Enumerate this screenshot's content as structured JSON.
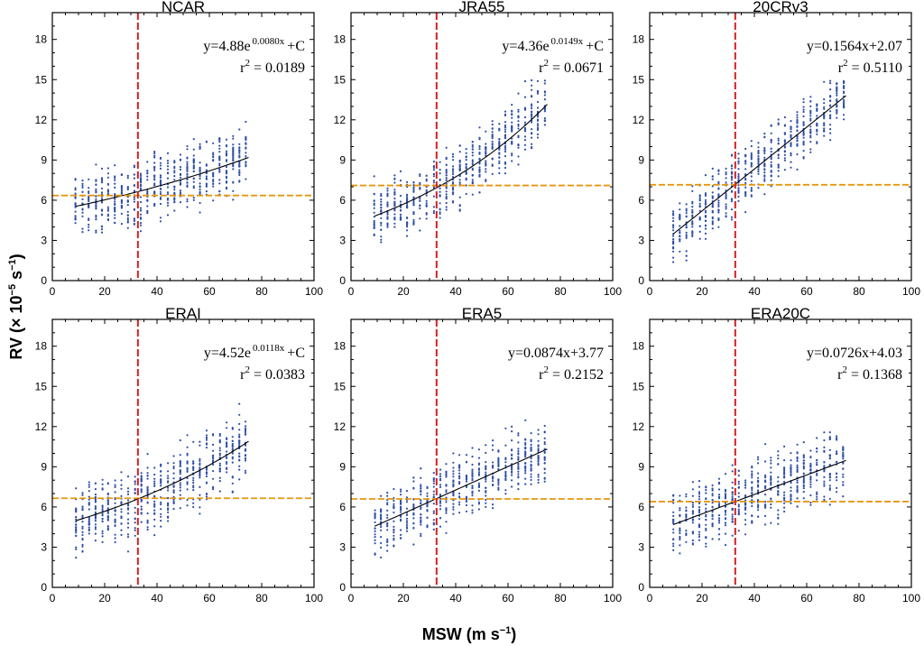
{
  "chart_data": {
    "type": "scatter",
    "xlabel": {
      "main": "MSW (m s",
      "exp": "−1",
      "close": ")"
    },
    "ylabel": {
      "main": "RV (× 10",
      "exp1": "−5",
      "mid": " s",
      "exp2": "−1",
      "close": ")"
    },
    "xlim": [
      0,
      100
    ],
    "ylim": [
      0,
      20
    ],
    "xticks": [
      0,
      20,
      40,
      60,
      80,
      100
    ],
    "yticks": [
      0,
      3,
      6,
      9,
      12,
      15,
      18
    ],
    "vline_x": 32.7,
    "colors": {
      "points": "#2f4fa8",
      "fit": "#000000",
      "vline": "#d42020",
      "hline": "#e8960c",
      "frame": "#000000"
    },
    "panels": [
      {
        "title": "NCAR",
        "fit_type": "exp",
        "a": 4.88,
        "b": 0.008,
        "c": 0.3,
        "eq": {
          "prefix": "y=4.88e",
          "exp": "0.0080x",
          "suffix": "+C"
        },
        "r2": {
          "base": "r",
          "sup": "2",
          "value": " = 0.0189"
        },
        "hline": 6.35,
        "spread": 1.9,
        "ymax_clip": 14.5
      },
      {
        "title": "JRA55",
        "fit_type": "exp",
        "a": 4.36,
        "b": 0.0149,
        "c": -0.17,
        "eq": {
          "prefix": "y=4.36e",
          "exp": "0.0149x",
          "suffix": "+C"
        },
        "r2": {
          "base": "r",
          "sup": "2",
          "value": " = 0.0671"
        },
        "hline": 7.1,
        "spread": 1.9,
        "ymax_clip": 15.6
      },
      {
        "title": "20CRv3",
        "fit_type": "linear",
        "m": 0.1564,
        "c": 2.07,
        "eq": {
          "prefix": "y=0.1564x+2.07",
          "exp": "",
          "suffix": ""
        },
        "r2": {
          "base": "r",
          "sup": "2",
          "value": " = 0.5110"
        },
        "hline": 7.15,
        "spread": 1.8,
        "ymax_clip": 15.0
      },
      {
        "title": "ERAI",
        "fit_type": "exp",
        "a": 4.52,
        "b": 0.0118,
        "c": -0.05,
        "eq": {
          "prefix": "y=4.52e",
          "exp": "0.0118x",
          "suffix": "+C"
        },
        "r2": {
          "base": "r",
          "sup": "2",
          "value": " = 0.0383"
        },
        "hline": 6.65,
        "spread": 2.1,
        "ymax_clip": 14.1
      },
      {
        "title": "ERA5",
        "fit_type": "linear",
        "m": 0.0874,
        "c": 3.77,
        "eq": {
          "prefix": "y=0.0874x+3.77",
          "exp": "",
          "suffix": ""
        },
        "r2": {
          "base": "r",
          "sup": "2",
          "value": " = 0.2152"
        },
        "hline": 6.6,
        "spread": 1.9,
        "ymax_clip": 14.2
      },
      {
        "title": "ERA20C",
        "fit_type": "linear",
        "m": 0.0726,
        "c": 4.03,
        "eq": {
          "prefix": "y=0.0726x+4.03",
          "exp": "",
          "suffix": ""
        },
        "r2": {
          "base": "r",
          "sup": "2",
          "value": " = 0.1368"
        },
        "hline": 6.4,
        "spread": 2.0,
        "ymax_clip": 14.1
      }
    ]
  }
}
